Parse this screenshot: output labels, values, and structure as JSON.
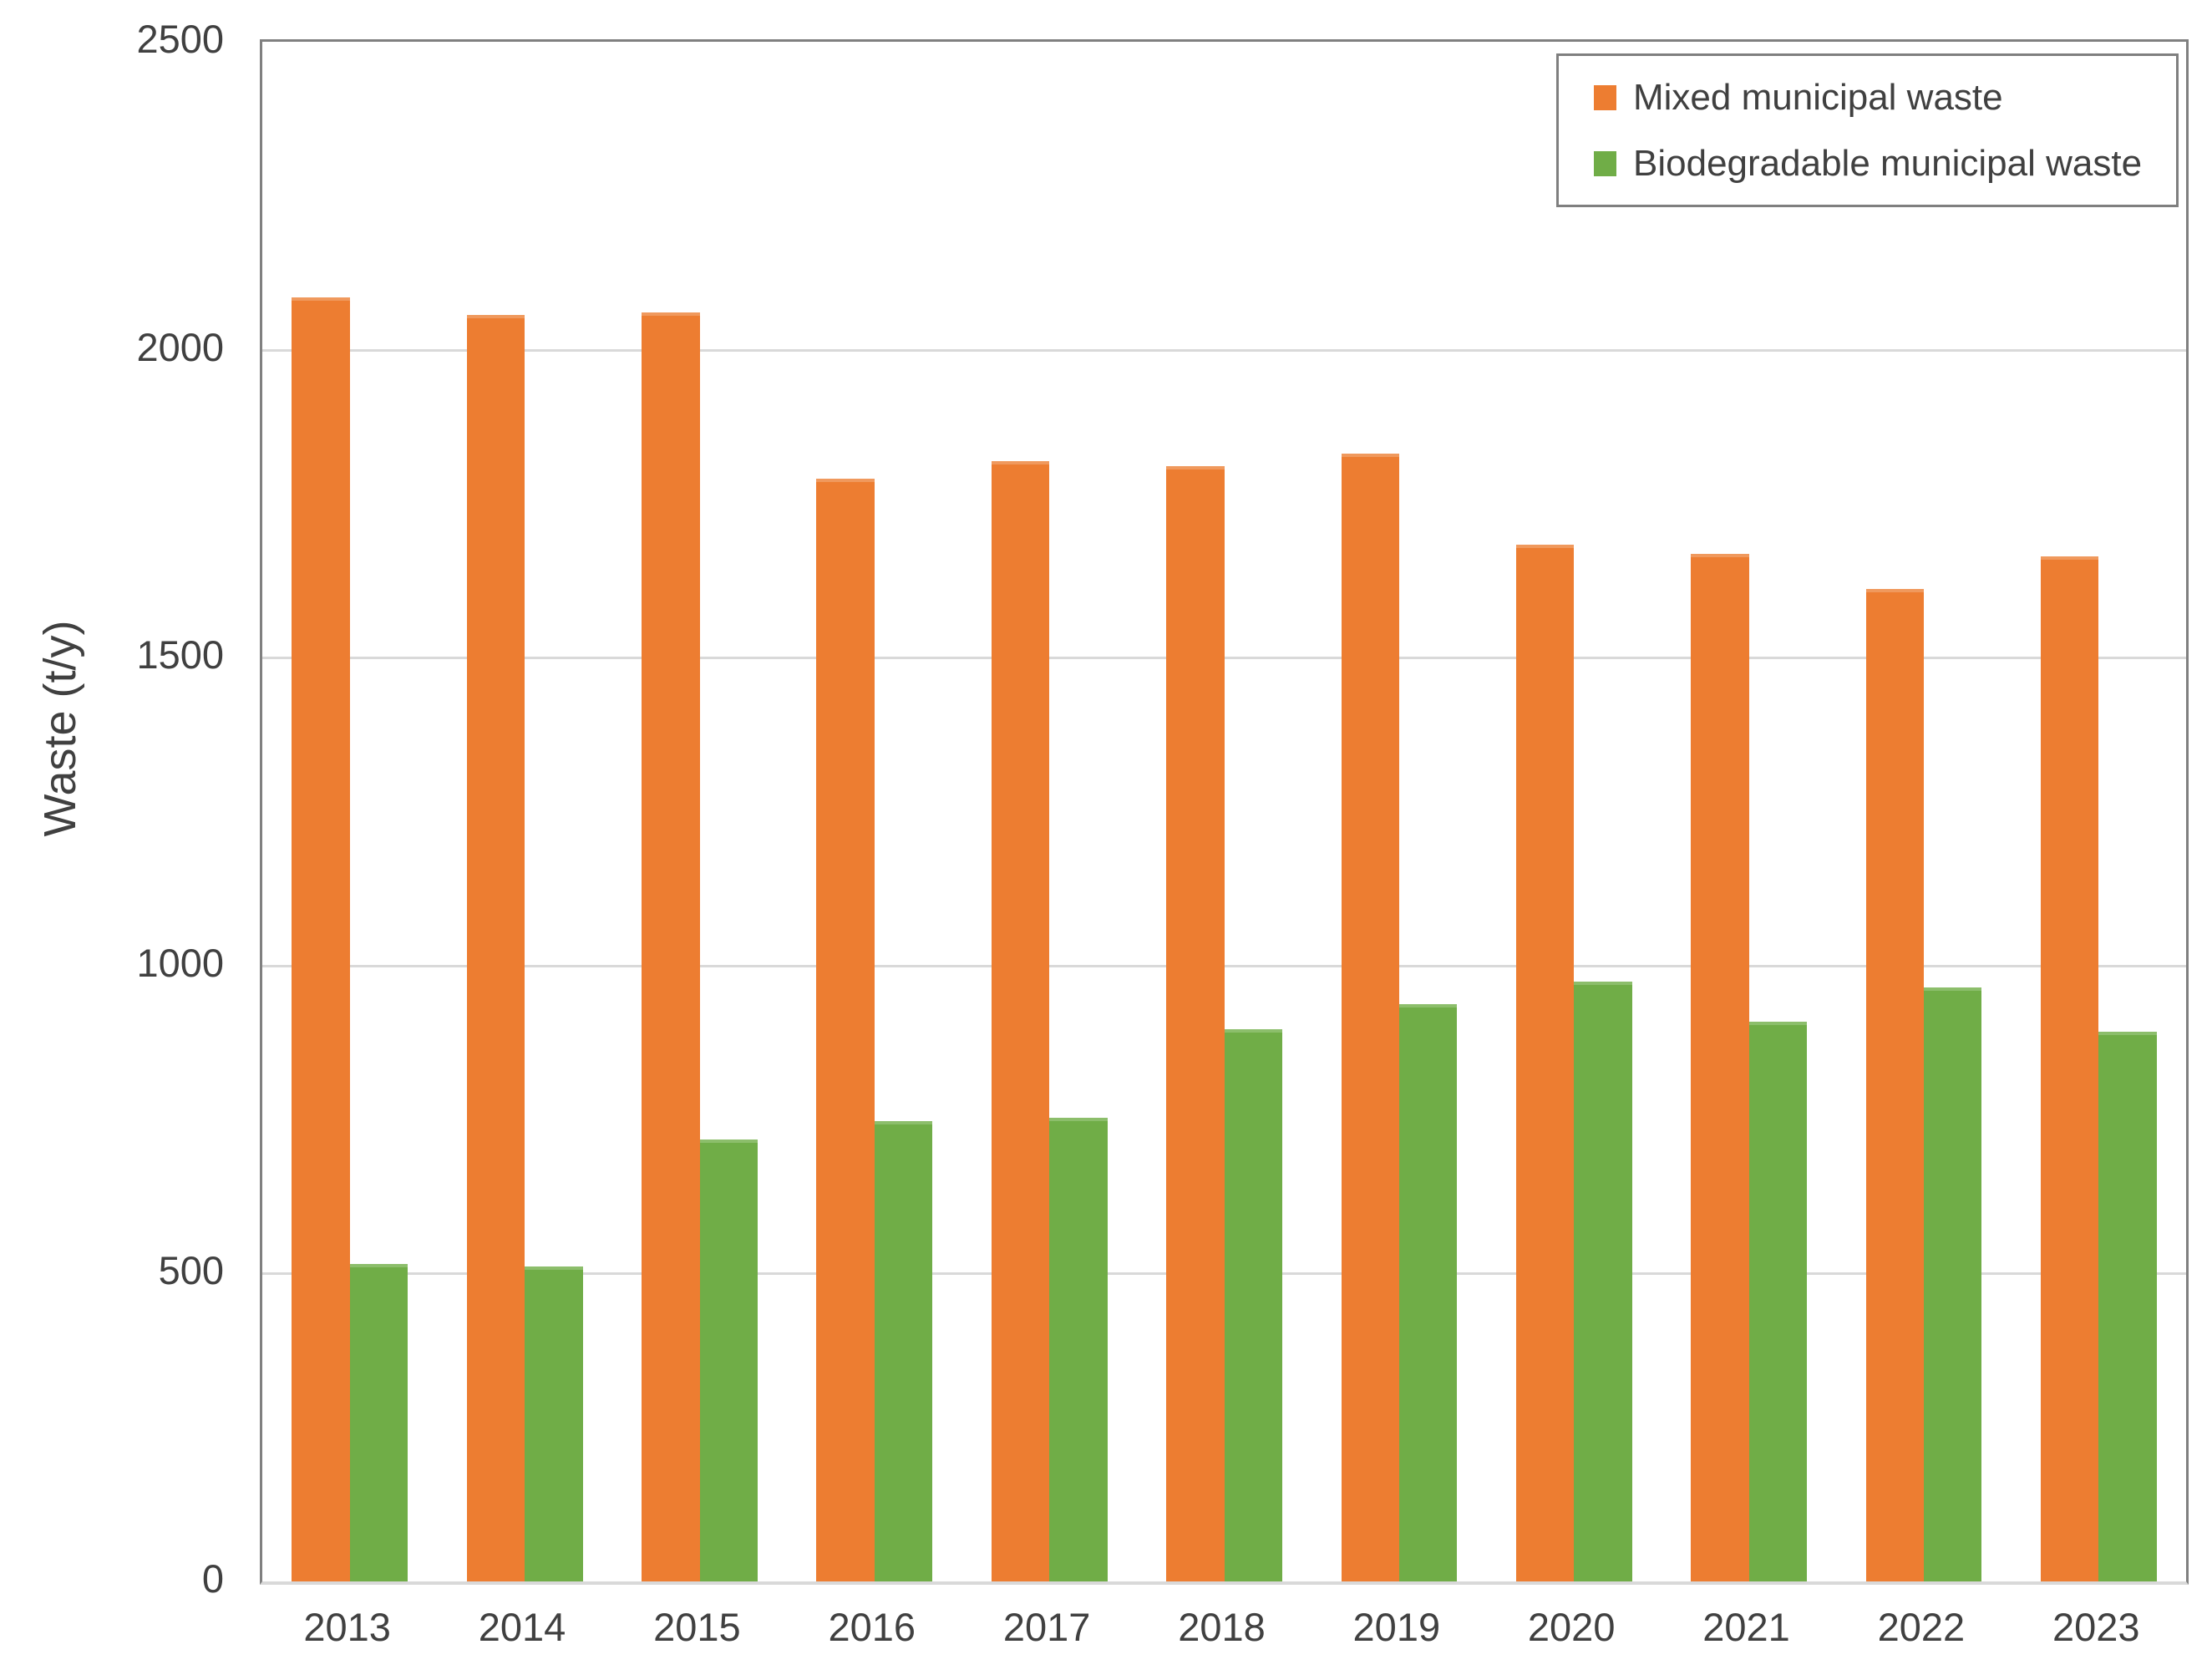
{
  "chart_data": {
    "type": "bar",
    "title": "",
    "xlabel": "",
    "ylabel": "Waste (t/y)",
    "ylim": [
      0,
      2500
    ],
    "y_ticks": [
      0,
      500,
      1000,
      1500,
      2000,
      2500
    ],
    "y_tick_labels": [
      "0",
      "500",
      "1000",
      "1500",
      "2000",
      "2500"
    ],
    "grid": true,
    "legend_position": "top-right",
    "categories": [
      "2013",
      "2014",
      "2015",
      "2016",
      "2017",
      "2018",
      "2019",
      "2020",
      "2021",
      "2022",
      "2023"
    ],
    "series": [
      {
        "name": "Mixed municipal waste",
        "color": "#ED7D31",
        "edge_color": "#F0995D",
        "values": [
          2085,
          2057,
          2061,
          1790,
          1819,
          1811,
          1831,
          1683,
          1668,
          1611,
          1665
        ]
      },
      {
        "name": "Biodegradable municipal waste",
        "color": "#70AD47",
        "edge_color": "#8CBE6B",
        "values": [
          515,
          512,
          718,
          748,
          753,
          896,
          938,
          974,
          909,
          965,
          892
        ]
      }
    ]
  },
  "colors": {
    "background": "#FFFFFF",
    "axis_border": "#808080",
    "gridline": "#D9D9D9",
    "text": "#404040",
    "legend_border": "#7F7F7F"
  }
}
